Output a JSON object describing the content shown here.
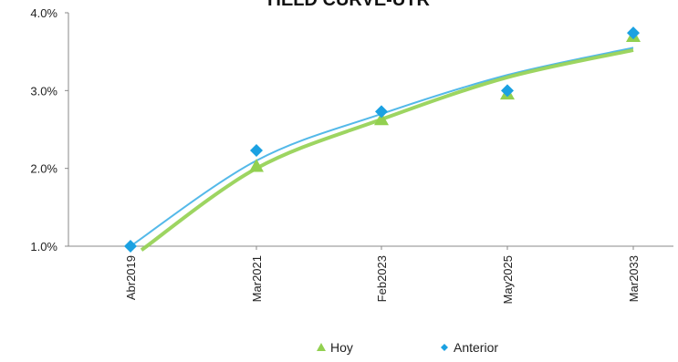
{
  "chart_data": {
    "type": "scatter",
    "title": "YIELD CURVE-UTR",
    "xlabel": "",
    "ylabel": "",
    "categories": [
      "Abr2019",
      "Mar2021",
      "Feb2023",
      "May2025",
      "Mar2033"
    ],
    "ylim": [
      1.0,
      4.0
    ],
    "yticks": [
      "1.0%",
      "2.0%",
      "3.0%",
      "4.0%"
    ],
    "series": [
      {
        "name": "Hoy",
        "marker": "triangle",
        "color": "#92D050",
        "values": [
          0.95,
          2.03,
          2.63,
          2.96,
          3.7
        ],
        "trend": [
          0.9,
          2.0,
          2.63,
          3.17,
          3.52
        ]
      },
      {
        "name": "Anterior",
        "marker": "diamond",
        "color": "#1BA1E2",
        "values": [
          1.0,
          2.23,
          2.73,
          3.0,
          3.74
        ],
        "trend": [
          1.0,
          2.1,
          2.7,
          3.2,
          3.55
        ]
      }
    ],
    "legend_position": "bottom",
    "grid": false
  }
}
